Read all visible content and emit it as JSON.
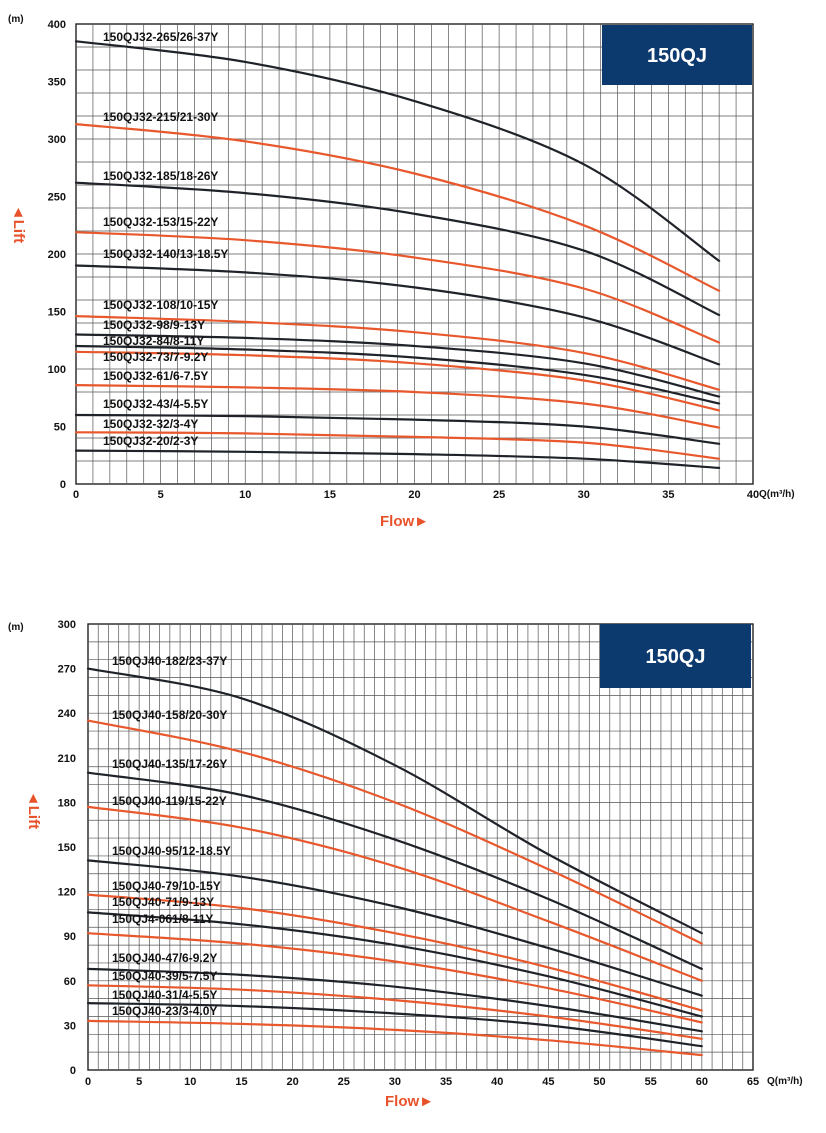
{
  "chart_data": [
    {
      "type": "line",
      "badge": "150QJ",
      "y_unit": "(m)",
      "ylabel": "◄Lift",
      "xlabel": "Flow►",
      "x_unit": "Q(m³/h)",
      "xlim": [
        0,
        40
      ],
      "ylim": [
        0,
        400
      ],
      "x_ticks": [
        0,
        5,
        10,
        15,
        20,
        25,
        30,
        35,
        40
      ],
      "y_ticks": [
        0,
        50,
        100,
        150,
        200,
        250,
        300,
        350,
        400
      ],
      "grid": true,
      "series_colors": {
        "dark": "#1f2329",
        "orange": "#e8582c"
      },
      "series": [
        {
          "name": "150QJ32-265/26-37Y",
          "color": "dark",
          "x": [
            0,
            10,
            20,
            30,
            38
          ],
          "y": [
            385,
            367,
            333,
            278,
            194
          ]
        },
        {
          "name": "150QJ32-215/21-30Y",
          "color": "orange",
          "x": [
            0,
            10,
            20,
            30,
            38
          ],
          "y": [
            313,
            298,
            270,
            225,
            168
          ]
        },
        {
          "name": "150QJ32-185/18-26Y",
          "color": "dark",
          "x": [
            0,
            10,
            20,
            30,
            38
          ],
          "y": [
            262,
            253,
            235,
            203,
            147
          ]
        },
        {
          "name": "150QJ32-153/15-22Y",
          "color": "orange",
          "x": [
            0,
            10,
            20,
            30,
            38
          ],
          "y": [
            219,
            212,
            197,
            170,
            123
          ]
        },
        {
          "name": "150QJ32-140/13-18.5Y",
          "color": "dark",
          "x": [
            0,
            10,
            20,
            30,
            38
          ],
          "y": [
            190,
            184,
            171,
            145,
            104
          ]
        },
        {
          "name": "150QJ32-108/10-15Y",
          "color": "orange",
          "x": [
            0,
            10,
            20,
            30,
            38
          ],
          "y": [
            146,
            141,
            132,
            114,
            82
          ]
        },
        {
          "name": "150QJ32-98/9-13Y",
          "color": "dark",
          "x": [
            0,
            10,
            20,
            30,
            38
          ],
          "y": [
            130,
            127,
            120,
            105,
            76
          ]
        },
        {
          "name": "150QJ32-84/8-11Y",
          "color": "dark",
          "x": [
            0,
            10,
            20,
            30,
            38
          ],
          "y": [
            120,
            117,
            110,
            95,
            70
          ]
        },
        {
          "name": "150QJ32-73/7-9.2Y",
          "color": "orange",
          "x": [
            0,
            10,
            20,
            30,
            38
          ],
          "y": [
            115,
            112,
            105,
            90,
            64
          ]
        },
        {
          "name": "150QJ32-61/6-7.5Y",
          "color": "orange",
          "x": [
            0,
            10,
            20,
            30,
            38
          ],
          "y": [
            86,
            84,
            80,
            70,
            49
          ]
        },
        {
          "name": "150QJ32-43/4-5.5Y",
          "color": "dark",
          "x": [
            0,
            10,
            20,
            30,
            38
          ],
          "y": [
            60,
            59,
            56,
            50,
            35
          ]
        },
        {
          "name": "150QJ32-32/3-4Y",
          "color": "orange",
          "x": [
            0,
            10,
            20,
            30,
            38
          ],
          "y": [
            45,
            44,
            41,
            36,
            22
          ]
        },
        {
          "name": "150QJ32-20/2-3Y",
          "color": "dark",
          "x": [
            0,
            10,
            20,
            30,
            38
          ],
          "y": [
            29,
            28,
            26,
            22,
            14
          ]
        }
      ]
    },
    {
      "type": "line",
      "badge": "150QJ",
      "y_unit": "(m)",
      "ylabel": "◄Lift",
      "xlabel": "Flow►",
      "x_unit": "Q(m³/h)",
      "xlim": [
        0,
        65
      ],
      "ylim": [
        0,
        300
      ],
      "x_ticks": [
        0,
        5,
        10,
        15,
        20,
        25,
        30,
        35,
        40,
        45,
        50,
        55,
        60,
        65
      ],
      "y_ticks": [
        0,
        30,
        60,
        90,
        120,
        150,
        180,
        210,
        240,
        270,
        300
      ],
      "grid": true,
      "series_colors": {
        "dark": "#1f2329",
        "orange": "#e8582c"
      },
      "series": [
        {
          "name": "150QJ40-182/23-37Y",
          "color": "dark",
          "x": [
            -1,
            15,
            30,
            45,
            60
          ],
          "y": [
            270,
            250,
            205,
            145,
            92
          ]
        },
        {
          "name": "150QJ40-158/20-30Y",
          "color": "orange",
          "x": [
            -1,
            15,
            30,
            45,
            60
          ],
          "y": [
            235,
            214,
            180,
            135,
            85
          ]
        },
        {
          "name": "150QJ40-135/17-26Y",
          "color": "dark",
          "x": [
            -1,
            15,
            30,
            45,
            60
          ],
          "y": [
            200,
            185,
            155,
            115,
            68
          ]
        },
        {
          "name": "150QJ40-119/15-22Y",
          "color": "orange",
          "x": [
            -1,
            15,
            30,
            45,
            60
          ],
          "y": [
            177,
            163,
            137,
            100,
            60
          ]
        },
        {
          "name": "150QJ40-95/12-18.5Y",
          "color": "dark",
          "x": [
            -1,
            15,
            30,
            45,
            60
          ],
          "y": [
            141,
            130,
            110,
            82,
            50
          ]
        },
        {
          "name": "150QJ40-79/10-15Y",
          "color": "orange",
          "x": [
            -1,
            15,
            30,
            45,
            60
          ],
          "y": [
            118,
            109,
            92,
            69,
            40
          ]
        },
        {
          "name": "150QJ40-71/9-13Y",
          "color": "dark",
          "x": [
            -1,
            15,
            30,
            45,
            60
          ],
          "y": [
            106,
            98,
            84,
            63,
            36
          ]
        },
        {
          "name": "150QJ4-061/8-11Y",
          "color": "orange",
          "x": [
            -1,
            15,
            30,
            45,
            60
          ],
          "y": [
            92,
            85,
            73,
            55,
            32
          ]
        },
        {
          "name": "150QJ40-47/6-9.2Y",
          "color": "dark",
          "x": [
            -1,
            15,
            30,
            45,
            60
          ],
          "y": [
            68,
            64,
            56,
            43,
            26
          ]
        },
        {
          "name": "150QJ40-39/5-7.5Y",
          "color": "orange",
          "x": [
            -1,
            15,
            30,
            45,
            60
          ],
          "y": [
            57,
            54,
            47,
            36,
            21
          ]
        },
        {
          "name": "150QJ40-31/4-5.5Y",
          "color": "dark",
          "x": [
            -1,
            15,
            30,
            45,
            60
          ],
          "y": [
            45,
            43,
            38,
            30,
            16
          ]
        },
        {
          "name": "150QJ40-23/3-4.0Y",
          "color": "orange",
          "x": [
            -1,
            15,
            30,
            45,
            60
          ],
          "y": [
            33,
            31,
            27,
            20,
            10
          ]
        }
      ]
    }
  ]
}
